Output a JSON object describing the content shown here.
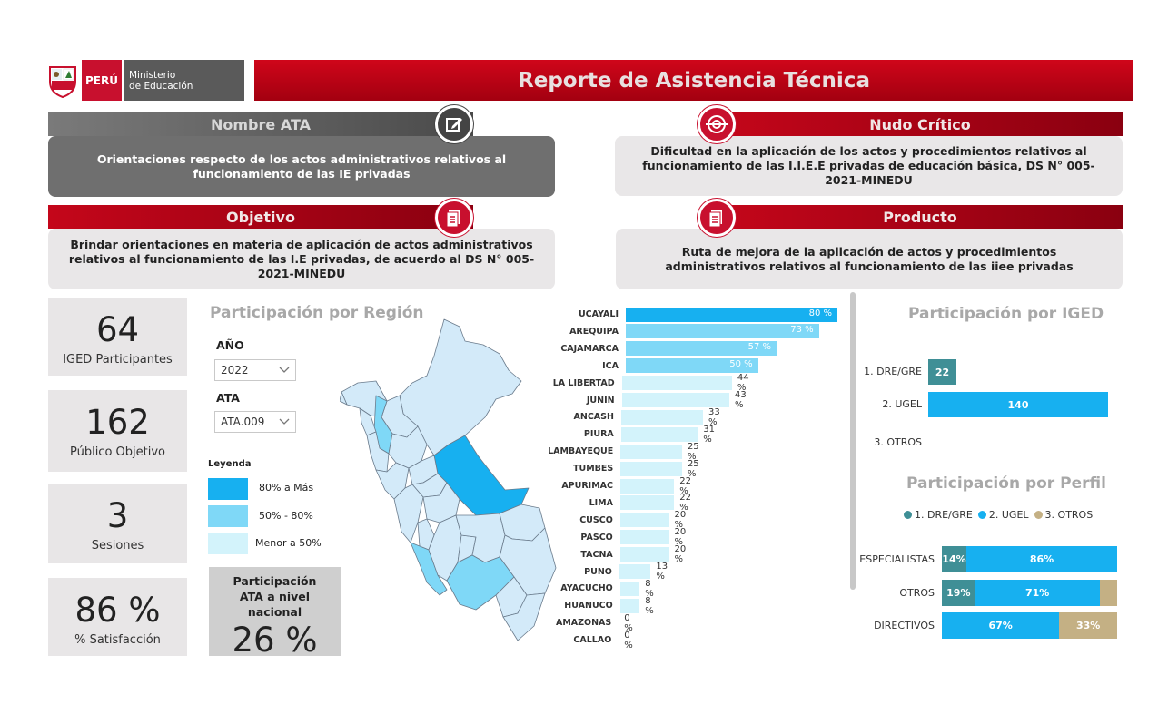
{
  "header": {
    "peru_label": "PERÚ",
    "ministry_line1": "Ministerio",
    "ministry_line2": "de Educación",
    "title": "Reporte de Asistencia Técnica"
  },
  "sections": {
    "nombre_ata": {
      "title": "Nombre ATA",
      "text": "Orientaciones respecto de los actos administrativos relativos al funcionamiento de las IE privadas",
      "icon": "edit-icon"
    },
    "nudo_critico": {
      "title": "Nudo Crítico",
      "text": "Dificultad en la aplicación de los actos y procedimientos relativos al funcionamiento de las I.I.E.E privadas de educación básica, DS N° 005-2021-MINEDU",
      "icon": "target-icon"
    },
    "objetivo": {
      "title": "Objetivo",
      "text": "Brindar orientaciones en materia de aplicación de actos administrativos relativos al funcionamiento de las I.E privadas, de acuerdo al DS N° 005-2021-MINEDU",
      "icon": "document-icon"
    },
    "producto": {
      "title": "Producto",
      "text": "Ruta de  mejora de la aplicación de actos y procedimientos administrativos relativos al funcionamiento de las iiee privadas",
      "icon": "document-icon"
    }
  },
  "kpis": [
    {
      "value": "64",
      "label": "IGED Participantes"
    },
    {
      "value": "162",
      "label": "Público Objetivo"
    },
    {
      "value": "3",
      "label": "Sesiones"
    },
    {
      "value": "86 %",
      "label": "% Satisfacción"
    }
  ],
  "region_panel": {
    "title": "Participación por Región",
    "year_label": "AÑO",
    "year_value": "2022",
    "ata_label": "ATA",
    "ata_value": "ATA.009",
    "legend_title": "Leyenda",
    "legend": [
      {
        "label": "80% a Más",
        "color": "#17b0f0"
      },
      {
        "label": "50% - 80%",
        "color": "#7fd8f7"
      },
      {
        "label": "Menor a 50%",
        "color": "#d3f3fb"
      }
    ],
    "national_label": "Participación ATA a nivel nacional",
    "national_value": "26 %"
  },
  "chart_data": [
    {
      "type": "bar",
      "orientation": "horizontal",
      "categories": [
        "UCAYALI",
        "AREQUIPA",
        "CAJAMARCA",
        "ICA",
        "LA LIBERTAD",
        "JUNIN",
        "ANCASH",
        "PIURA",
        "LAMBAYEQUE",
        "TUMBES",
        "APURIMAC",
        "LIMA",
        "CUSCO",
        "PASCO",
        "TACNA",
        "PUNO",
        "AYACUCHO",
        "HUANUCO",
        "AMAZONAS",
        "CALLAO"
      ],
      "values": [
        80,
        73,
        57,
        50,
        44,
        43,
        33,
        31,
        25,
        25,
        22,
        22,
        20,
        20,
        20,
        13,
        8,
        8,
        0,
        0
      ],
      "labels": [
        "80 %",
        "73 %",
        "57 %",
        "50 %",
        "44 %",
        "43 %",
        "33 %",
        "31 %",
        "25 %",
        "25 %",
        "22 %",
        "22 %",
        "20 %",
        "20 %",
        "20 %",
        "13 %",
        "8 %",
        "8 %",
        "0 %",
        "0 %"
      ]
    },
    {
      "type": "bar",
      "orientation": "horizontal",
      "title": "Participación por IGED",
      "categories": [
        "1. DRE/GRE",
        "2. UGEL",
        "3. OTROS"
      ],
      "values": [
        22,
        140,
        0
      ],
      "labels": [
        "22",
        "140",
        ""
      ],
      "colors": [
        "#3f8f96",
        "#17b0f0",
        "#17b0f0"
      ]
    },
    {
      "type": "bar",
      "orientation": "horizontal",
      "stacked": "percent",
      "title": "Participación por Perfil",
      "legend": [
        "1. DRE/GRE",
        "2. UGEL",
        "3. OTROS"
      ],
      "legend_colors": [
        "#3f8f96",
        "#17b0f0",
        "#c4b084"
      ],
      "categories": [
        "ESPECIALISTAS",
        "OTROS",
        "DIRECTIVOS"
      ],
      "series": [
        {
          "name": "1. DRE/GRE",
          "values": [
            14,
            19,
            0
          ]
        },
        {
          "name": "2. UGEL",
          "values": [
            86,
            71,
            67
          ]
        },
        {
          "name": "3. OTROS",
          "values": [
            0,
            10,
            33
          ]
        }
      ],
      "labels": [
        [
          "14%",
          "86%",
          ""
        ],
        [
          "19%",
          "71%",
          ""
        ],
        [
          "",
          "67%",
          "33%"
        ]
      ]
    }
  ]
}
